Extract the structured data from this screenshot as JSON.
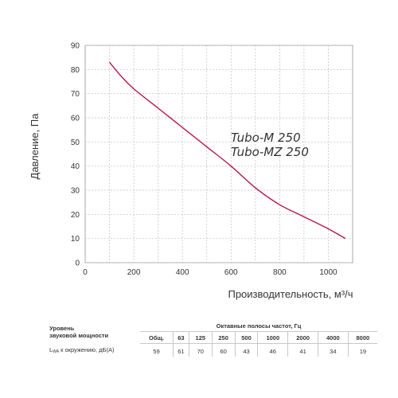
{
  "chart_data": {
    "type": "line",
    "xlabel": "Производительность, м³/ч",
    "ylabel": "Давление, Па",
    "xlim": [
      0,
      1100
    ],
    "ylim": [
      0,
      90
    ],
    "xticks": [
      0,
      200,
      400,
      600,
      800,
      1000
    ],
    "yticks": [
      0,
      10,
      20,
      30,
      40,
      50,
      60,
      70,
      80,
      90
    ],
    "grid": true,
    "line_color": "#b5154b",
    "series": [
      {
        "name": "",
        "x": [
          100,
          150,
          200,
          300,
          400,
          500,
          600,
          700,
          800,
          900,
          1000,
          1070
        ],
        "y": [
          83,
          77,
          72,
          64,
          56,
          48,
          40,
          31,
          24,
          19,
          14,
          10
        ]
      }
    ],
    "annotations": [
      "Tubo-M 250",
      "Tubo-MZ 250"
    ]
  },
  "sound_table": {
    "label_title": "Уровень\nзвуковой мощности",
    "bands_title": "Октавные полосы частот, Гц",
    "headers": [
      "Общ.",
      "63",
      "125",
      "250",
      "500",
      "1000",
      "2000",
      "4000",
      "8000"
    ],
    "row_label_main": "L",
    "row_label_sub": "WA",
    "row_label_rest": " к окружению, дБ(А)",
    "values": [
      "59",
      "61",
      "70",
      "60",
      "43",
      "46",
      "41",
      "34",
      "19"
    ]
  }
}
